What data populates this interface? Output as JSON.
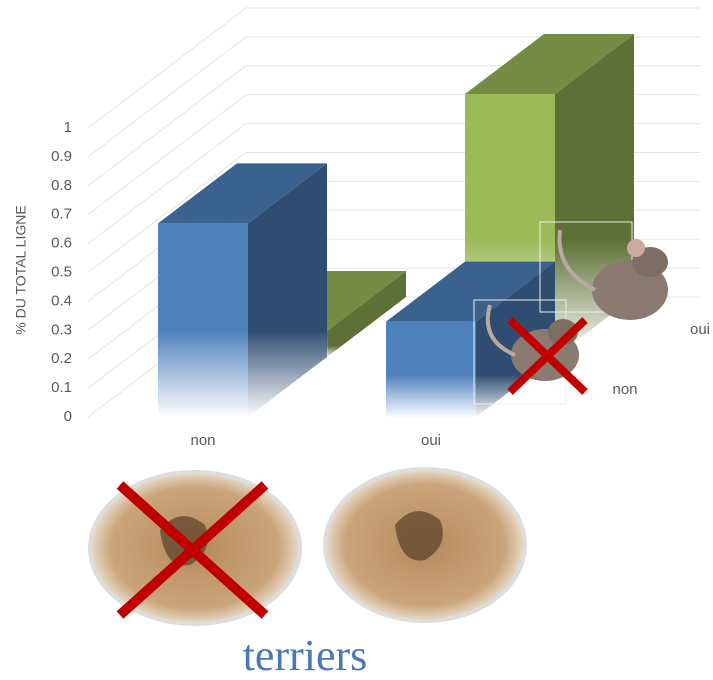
{
  "chart_data": {
    "type": "bar3d",
    "y_label": "% DU TOTAL LIGNE",
    "x_label": "terriers",
    "categories": [
      "non",
      "oui"
    ],
    "series": [
      {
        "name": "non",
        "color": "#4f81bd",
        "values": [
          0.67,
          0.33
        ]
      },
      {
        "name": "oui",
        "color": "#9bbb59",
        "values": [
          0.09,
          0.91
        ]
      }
    ],
    "ylim": [
      0,
      1
    ],
    "yticks": [
      0,
      0.1,
      0.2,
      0.3,
      0.4,
      0.5,
      0.6,
      0.7,
      0.8,
      0.9,
      1
    ],
    "grid": true
  }
}
